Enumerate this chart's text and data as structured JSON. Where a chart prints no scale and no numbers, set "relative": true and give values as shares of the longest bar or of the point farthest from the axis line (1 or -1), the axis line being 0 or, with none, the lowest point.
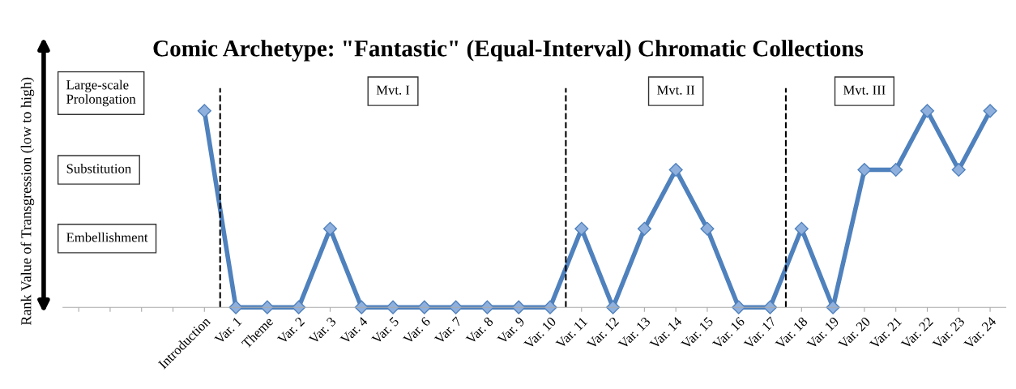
{
  "chart_data": {
    "type": "line",
    "title": "Comic Archetype: \"Fantastic\" (Equal-Interval) Chromatic Collections",
    "ylabel": "Rank Value of Transgression (low to high)",
    "categories": [
      null,
      null,
      null,
      null,
      "Introduction",
      "Var. 1",
      "Theme",
      "Var. 2",
      "Var. 3",
      "Var. 4",
      "Var. 5",
      "Var. 6",
      "Var. 7",
      "Var. 8",
      "Var. 9",
      "Var. 10",
      "Var. 11",
      "Var. 12",
      "Var. 13",
      "Var. 14",
      "Var. 15",
      "Var. 16",
      "Var. 17",
      "Var. 18",
      "Var. 19",
      "Var. 20",
      "Var. 21",
      "Var. 22",
      "Var. 23",
      "Var. 24"
    ],
    "series": [
      {
        "color": "#4f81bd",
        "values": [
          null,
          null,
          null,
          null,
          1,
          0,
          0,
          0,
          0.4,
          0,
          0,
          0,
          0,
          0,
          0,
          0,
          0.4,
          0,
          0.4,
          0.7,
          0.4,
          0,
          0,
          0.4,
          0,
          0.7,
          0.7,
          1,
          0.7,
          1
        ]
      }
    ],
    "relative": true,
    "annotations": [
      "Large-scale\nProlongation",
      "Substitution",
      "Embellishment",
      "Mvt. I",
      "Mvt. II",
      "Mvt. III"
    ],
    "marker": "diamond",
    "line_style": "solid"
  }
}
